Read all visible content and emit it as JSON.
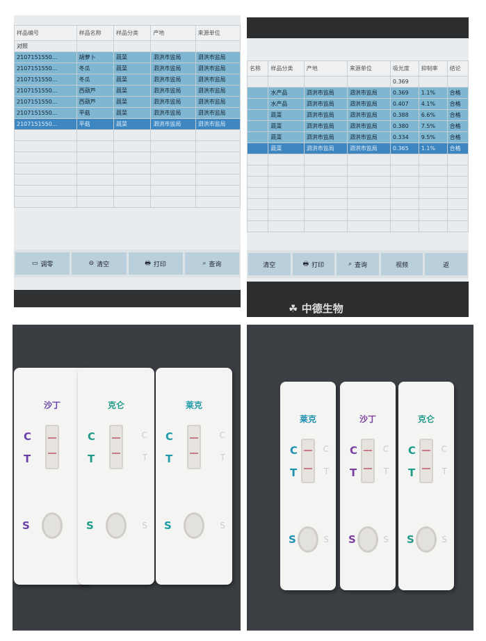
{
  "left_screen": {
    "headers": [
      "样品编号",
      "样品名称",
      "样品分类",
      "产地",
      "来源单位"
    ],
    "first_row": "对照",
    "rows": [
      [
        "2107151550...",
        "胡萝卜",
        "蔬菜",
        "泗洪市监局",
        "泗洪市监局"
      ],
      [
        "2107151550...",
        "冬瓜",
        "蔬菜",
        "泗洪市监局",
        "泗洪市监局"
      ],
      [
        "2107151550...",
        "冬瓜",
        "蔬菜",
        "泗洪市监局",
        "泗洪市监局"
      ],
      [
        "2107151550...",
        "西葫芦",
        "蔬菜",
        "泗洪市监局",
        "泗洪市监局"
      ],
      [
        "2107151550...",
        "西葫芦",
        "蔬菜",
        "泗洪市监局",
        "泗洪市监局"
      ],
      [
        "2107151550...",
        "平菇",
        "蔬菜",
        "泗洪市监局",
        "泗洪市监局"
      ],
      [
        "2107151550...",
        "平菇",
        "蔬菜",
        "泗洪市监局",
        "泗洪市监局"
      ]
    ],
    "buttons": [
      "调零",
      "清空",
      "打印",
      "查询"
    ]
  },
  "right_screen": {
    "headers": [
      "名称",
      "样品分类",
      "产地",
      "来源单位",
      "吸光度",
      "抑制率",
      "结论"
    ],
    "first_row_absorbance": "0.369",
    "rows": [
      [
        "",
        "水产品",
        "泗洪市监局",
        "泗洪市监局",
        "0.369",
        "1.1%",
        "合格"
      ],
      [
        "",
        "水产品",
        "泗洪市监局",
        "泗洪市监局",
        "0.407",
        "4.1%",
        "合格"
      ],
      [
        "",
        "蔬菜",
        "泗洪市监局",
        "泗洪市监局",
        "0.388",
        "6.6%",
        "合格"
      ],
      [
        "",
        "蔬菜",
        "泗洪市监局",
        "泗洪市监局",
        "0.380",
        "7.5%",
        "合格"
      ],
      [
        "",
        "蔬菜",
        "泗洪市监局",
        "泗洪市监局",
        "0.334",
        "9.5%",
        "合格"
      ],
      [
        "",
        "蔬菜",
        "泗洪市监局",
        "泗洪市监局",
        "0.365",
        "1.1%",
        "合格"
      ]
    ],
    "buttons": [
      "清空",
      "打印",
      "查询",
      "视频",
      "返"
    ],
    "brand": "中德生物"
  },
  "left_cassettes": [
    {
      "name": "沙丁",
      "color": "#6a3fa8"
    },
    {
      "name": "克仑",
      "color": "#1f9a8a"
    },
    {
      "name": "莱克",
      "color": "#1f9aa8"
    }
  ],
  "right_cassettes": [
    {
      "name": "莱克",
      "color": "#1f8fb0"
    },
    {
      "name": "沙丁",
      "color": "#7a3fa0"
    },
    {
      "name": "克仑",
      "color": "#1f9a8a"
    }
  ],
  "strip_letters": {
    "c": "C",
    "t": "T",
    "s": "S"
  }
}
